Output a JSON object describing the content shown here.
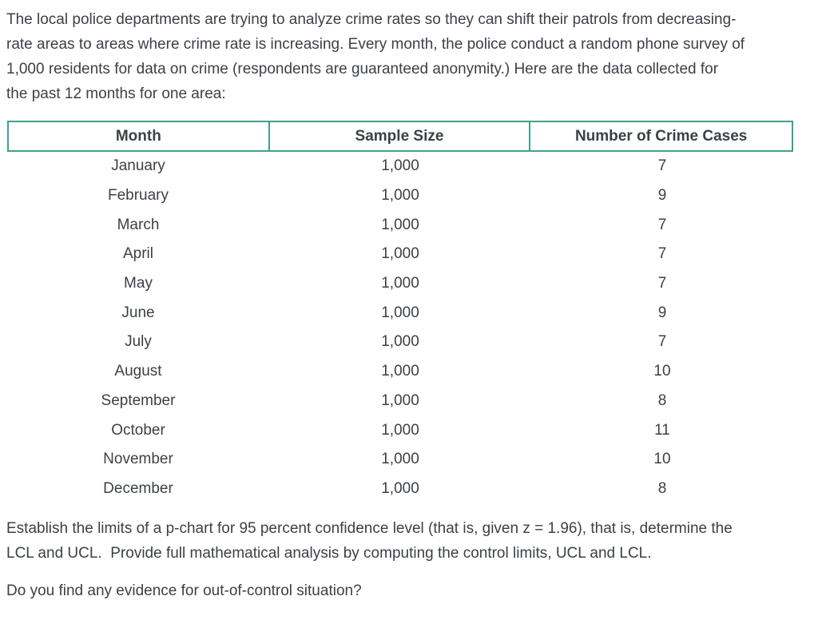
{
  "page": {
    "background_color": "#ffffff",
    "text_color": "#3c4147",
    "table_border_color": "#3fa18b"
  },
  "intro": {
    "lines": [
      "The local police departments are trying to analyze crime rates so they can shift their patrols from decreasing-",
      "rate areas to areas where crime rate is increasing. Every month, the police conduct a random phone survey of",
      "1,000 residents for data on crime (respondents are guaranteed anonymity.) Here are the data collected for",
      "the past 12 months for one area:"
    ]
  },
  "table": {
    "headers": {
      "month": "Month",
      "sample_size": "Sample Size",
      "crime_cases": "Number of Crime Cases"
    },
    "rows": [
      {
        "month": "January",
        "sample_size": "1,000",
        "crime_cases": "7"
      },
      {
        "month": "February",
        "sample_size": "1,000",
        "crime_cases": "9"
      },
      {
        "month": "March",
        "sample_size": "1,000",
        "crime_cases": "7"
      },
      {
        "month": "April",
        "sample_size": "1,000",
        "crime_cases": "7"
      },
      {
        "month": "May",
        "sample_size": "1,000",
        "crime_cases": "7"
      },
      {
        "month": "June",
        "sample_size": "1,000",
        "crime_cases": "9"
      },
      {
        "month": "July",
        "sample_size": "1,000",
        "crime_cases": "7"
      },
      {
        "month": "August",
        "sample_size": "1,000",
        "crime_cases": "10"
      },
      {
        "month": "September",
        "sample_size": "1,000",
        "crime_cases": "8"
      },
      {
        "month": "October",
        "sample_size": "1,000",
        "crime_cases": "11"
      },
      {
        "month": "November",
        "sample_size": "1,000",
        "crime_cases": "10"
      },
      {
        "month": "December",
        "sample_size": "1,000",
        "crime_cases": "8"
      }
    ]
  },
  "task": {
    "lines": [
      "Establish the limits of a p-chart for 95 percent confidence level (that is, given z = 1.96), that is, determine the",
      "LCL and UCL.  Provide full mathematical analysis by computing the control limits, UCL and LCL."
    ]
  },
  "followup_question": "Do you find any evidence for out-of-control situation?"
}
